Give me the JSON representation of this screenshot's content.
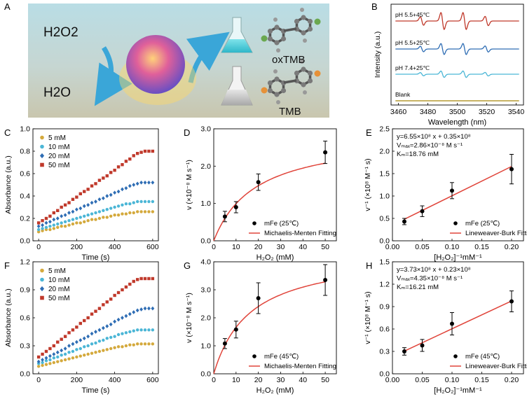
{
  "panel_a": {
    "label": "A",
    "reactant": "H2O2",
    "product": "H2O",
    "oxidized": "oxTMB",
    "reduced": "TMB"
  },
  "chart_data": [
    {
      "id": "B",
      "label": "B",
      "type": "line",
      "title": "",
      "xlabel": "Wavelength (nm)",
      "ylabel": "Intensity (a.u.)",
      "xlim": [
        3455,
        3545
      ],
      "xticks": [
        3460,
        3480,
        3500,
        3520,
        3540
      ],
      "series": [
        {
          "name": "pH 5.5+45℃",
          "color": "#c0392b",
          "offset": 3.0,
          "scale": 1.0
        },
        {
          "name": "pH 5.5+25℃",
          "color": "#2e6db4",
          "offset": 2.0,
          "scale": 0.65
        },
        {
          "name": "pH 7.4+25℃",
          "color": "#4bb6d6",
          "offset": 1.1,
          "scale": 0.38
        },
        {
          "name": "Blank",
          "color": "#c8b465",
          "offset": 0.15,
          "scale": 0.0
        }
      ],
      "peak_positions": [
        3476,
        3490,
        3505,
        3520
      ]
    },
    {
      "id": "C",
      "label": "C",
      "type": "scatter",
      "xlabel": "Time (s)",
      "ylabel": "Absorbance (a.u.)",
      "xlim": [
        -30,
        630
      ],
      "ylim": [
        0,
        1.0
      ],
      "xticks": [
        0,
        200,
        400,
        600
      ],
      "yticks": [
        0.0,
        0.2,
        0.4,
        0.6,
        0.8,
        1.0
      ],
      "ytick_labels": [
        "0.0",
        "0.2",
        "0.4",
        "0.6",
        "0.8",
        "1.0"
      ],
      "x": [
        0,
        20,
        40,
        60,
        80,
        100,
        120,
        140,
        160,
        180,
        200,
        220,
        240,
        260,
        280,
        300,
        320,
        340,
        360,
        380,
        400,
        420,
        440,
        460,
        480,
        500,
        520,
        540,
        560,
        580,
        600
      ],
      "series": [
        {
          "name": "5 mM",
          "color": "#d4a93c",
          "marker": "circle",
          "values": [
            0.08,
            0.09,
            0.1,
            0.1,
            0.11,
            0.12,
            0.13,
            0.13,
            0.14,
            0.15,
            0.16,
            0.16,
            0.17,
            0.18,
            0.19,
            0.19,
            0.2,
            0.21,
            0.21,
            0.22,
            0.23,
            0.23,
            0.24,
            0.24,
            0.25,
            0.25,
            0.26,
            0.26,
            0.26,
            0.26,
            0.26
          ]
        },
        {
          "name": "10 mM",
          "color": "#4bb6d6",
          "marker": "circle",
          "values": [
            0.1,
            0.11,
            0.12,
            0.13,
            0.14,
            0.15,
            0.16,
            0.17,
            0.18,
            0.19,
            0.2,
            0.21,
            0.22,
            0.23,
            0.24,
            0.25,
            0.26,
            0.27,
            0.28,
            0.29,
            0.3,
            0.31,
            0.32,
            0.33,
            0.33,
            0.34,
            0.35,
            0.35,
            0.35,
            0.35,
            0.35
          ]
        },
        {
          "name": "20 mM",
          "color": "#2e6db4",
          "marker": "diamond",
          "values": [
            0.13,
            0.14,
            0.16,
            0.17,
            0.19,
            0.2,
            0.22,
            0.23,
            0.25,
            0.26,
            0.28,
            0.29,
            0.31,
            0.32,
            0.34,
            0.35,
            0.37,
            0.38,
            0.4,
            0.41,
            0.43,
            0.44,
            0.46,
            0.47,
            0.49,
            0.5,
            0.51,
            0.52,
            0.52,
            0.52,
            0.52
          ]
        },
        {
          "name": "50 mM",
          "color": "#c0392b",
          "marker": "square",
          "values": [
            0.16,
            0.18,
            0.2,
            0.22,
            0.25,
            0.27,
            0.3,
            0.32,
            0.34,
            0.37,
            0.39,
            0.42,
            0.44,
            0.46,
            0.49,
            0.51,
            0.54,
            0.56,
            0.58,
            0.61,
            0.63,
            0.66,
            0.68,
            0.71,
            0.73,
            0.76,
            0.78,
            0.79,
            0.8,
            0.8,
            0.8
          ]
        }
      ]
    },
    {
      "id": "D",
      "label": "D",
      "type": "scatter",
      "xlabel": "H₂O₂ (mM)",
      "ylabel": "v (×10⁻⁸ M s⁻¹)",
      "xlim": [
        0,
        55
      ],
      "ylim": [
        0,
        3.0
      ],
      "xticks": [
        0,
        10,
        20,
        30,
        40,
        50
      ],
      "yticks": [
        0.0,
        1.0,
        2.0,
        3.0
      ],
      "ytick_labels": [
        "0.0",
        "1.0",
        "2.0",
        "3.0"
      ],
      "points": {
        "x": [
          5,
          10,
          20,
          50
        ],
        "y": [
          0.65,
          0.9,
          1.57,
          2.37
        ],
        "err": [
          0.14,
          0.15,
          0.22,
          0.3
        ]
      },
      "fit": {
        "vmax": 2.86,
        "km": 18.76
      },
      "legend": [
        "mFe (25℃)",
        "Michaelis-Menten Fitting"
      ]
    },
    {
      "id": "E",
      "label": "E",
      "type": "scatter",
      "xlabel": "[H₂O₂]⁻¹mM⁻¹",
      "ylabel": "v⁻¹ (×10⁸ M⁻¹ s)",
      "xlim": [
        0,
        0.22
      ],
      "ylim": [
        0,
        2.5
      ],
      "xticks": [
        0.0,
        0.05,
        0.1,
        0.15,
        0.2
      ],
      "xtick_labels": [
        "0.00",
        "0.05",
        "0.10",
        "0.15",
        "0.20"
      ],
      "yticks": [
        0.0,
        0.5,
        1.0,
        1.5,
        2.0,
        2.5
      ],
      "ytick_labels": [
        "0.0",
        "0.5",
        "1.0",
        "1.5",
        "2.0",
        "2.5"
      ],
      "points": {
        "x": [
          0.02,
          0.05,
          0.1,
          0.2
        ],
        "y": [
          0.43,
          0.66,
          1.12,
          1.6
        ],
        "err": [
          0.07,
          0.12,
          0.18,
          0.33
        ]
      },
      "fit": {
        "slope": 6.55,
        "intercept": 0.35
      },
      "annotations": [
        "y=6.55×10⁸ x + 0.35×10⁸",
        "Vₘₐₓ=2.86×10⁻⁸ M s⁻¹",
        "Kₘ=18.76 mM"
      ],
      "legend": [
        "mFe (25℃)",
        "Lineweaver-Burk Fitting"
      ]
    },
    {
      "id": "F",
      "label": "F",
      "type": "scatter",
      "xlabel": "Time (s)",
      "ylabel": "Absorbance (a.u.)",
      "xlim": [
        -30,
        630
      ],
      "ylim": [
        0,
        1.2
      ],
      "xticks": [
        0,
        200,
        400,
        600
      ],
      "yticks": [
        0.0,
        0.3,
        0.6,
        0.9,
        1.2
      ],
      "ytick_labels": [
        "0.0",
        "0.3",
        "0.6",
        "0.9",
        "1.2"
      ],
      "x": [
        0,
        20,
        40,
        60,
        80,
        100,
        120,
        140,
        160,
        180,
        200,
        220,
        240,
        260,
        280,
        300,
        320,
        340,
        360,
        380,
        400,
        420,
        440,
        460,
        480,
        500,
        520,
        540,
        560,
        580,
        600
      ],
      "series": [
        {
          "name": "5 mM",
          "color": "#d4a93c",
          "marker": "circle",
          "values": [
            0.08,
            0.09,
            0.1,
            0.11,
            0.12,
            0.13,
            0.14,
            0.15,
            0.16,
            0.17,
            0.18,
            0.19,
            0.2,
            0.21,
            0.22,
            0.23,
            0.24,
            0.25,
            0.26,
            0.27,
            0.28,
            0.29,
            0.29,
            0.3,
            0.31,
            0.31,
            0.32,
            0.32,
            0.32,
            0.32,
            0.32
          ]
        },
        {
          "name": "10 mM",
          "color": "#4bb6d6",
          "marker": "circle",
          "values": [
            0.11,
            0.12,
            0.14,
            0.15,
            0.17,
            0.18,
            0.2,
            0.21,
            0.23,
            0.24,
            0.26,
            0.27,
            0.29,
            0.3,
            0.32,
            0.33,
            0.35,
            0.36,
            0.38,
            0.39,
            0.4,
            0.42,
            0.43,
            0.44,
            0.45,
            0.46,
            0.47,
            0.47,
            0.47,
            0.47,
            0.47
          ]
        },
        {
          "name": "20 mM",
          "color": "#2e6db4",
          "marker": "diamond",
          "values": [
            0.13,
            0.15,
            0.17,
            0.19,
            0.21,
            0.23,
            0.25,
            0.27,
            0.3,
            0.32,
            0.34,
            0.36,
            0.38,
            0.4,
            0.43,
            0.45,
            0.47,
            0.49,
            0.51,
            0.53,
            0.56,
            0.58,
            0.6,
            0.62,
            0.64,
            0.66,
            0.68,
            0.69,
            0.7,
            0.7,
            0.7
          ]
        },
        {
          "name": "50 mM",
          "color": "#c0392b",
          "marker": "square",
          "values": [
            0.18,
            0.21,
            0.24,
            0.27,
            0.3,
            0.34,
            0.37,
            0.4,
            0.44,
            0.47,
            0.5,
            0.54,
            0.57,
            0.6,
            0.64,
            0.67,
            0.7,
            0.74,
            0.77,
            0.8,
            0.84,
            0.87,
            0.9,
            0.93,
            0.96,
            0.99,
            1.01,
            1.02,
            1.02,
            1.02,
            1.02
          ]
        }
      ]
    },
    {
      "id": "G",
      "label": "G",
      "type": "scatter",
      "xlabel": "H₂O₂ (mM)",
      "ylabel": "v (×10⁻⁸ M s⁻¹)",
      "xlim": [
        0,
        55
      ],
      "ylim": [
        0,
        4.0
      ],
      "xticks": [
        0,
        10,
        20,
        30,
        40,
        50
      ],
      "yticks": [
        0.0,
        1.0,
        2.0,
        3.0,
        4.0
      ],
      "ytick_labels": [
        "0.0",
        "1.0",
        "2.0",
        "3.0",
        "4.0"
      ],
      "points": {
        "x": [
          5,
          10,
          20,
          50
        ],
        "y": [
          1.08,
          1.58,
          2.7,
          3.35
        ],
        "err": [
          0.18,
          0.3,
          0.55,
          0.55
        ]
      },
      "fit": {
        "vmax": 4.35,
        "km": 16.21
      },
      "legend": [
        "mFe (45℃)",
        "Michaelis-Menten Fitting"
      ]
    },
    {
      "id": "H",
      "label": "H",
      "type": "scatter",
      "xlabel": "[H₂O₂]⁻¹mM⁻¹",
      "ylabel": "v⁻¹ (×10⁸ M⁻¹ s)",
      "xlim": [
        0,
        0.22
      ],
      "ylim": [
        0,
        1.5
      ],
      "xticks": [
        0.0,
        0.05,
        0.1,
        0.15,
        0.2
      ],
      "xtick_labels": [
        "0.00",
        "0.05",
        "0.10",
        "0.15",
        "0.20"
      ],
      "yticks": [
        0.0,
        0.3,
        0.6,
        0.9,
        1.2,
        1.5
      ],
      "ytick_labels": [
        "0.0",
        "0.3",
        "0.6",
        "0.9",
        "1.2",
        "1.5"
      ],
      "points": {
        "x": [
          0.02,
          0.05,
          0.1,
          0.2
        ],
        "y": [
          0.3,
          0.38,
          0.67,
          0.97
        ],
        "err": [
          0.05,
          0.08,
          0.15,
          0.14
        ]
      },
      "fit": {
        "slope": 3.73,
        "intercept": 0.23
      },
      "annotations": [
        "y=3.73×10⁸ x + 0.23×10⁸",
        "Vₘₐₓ=4.35×10⁻⁸ M s⁻¹",
        "Kₘ=16.21 mM"
      ],
      "legend": [
        "mFe (45℃)",
        "Lineweaver-Burk Fitting"
      ]
    }
  ]
}
